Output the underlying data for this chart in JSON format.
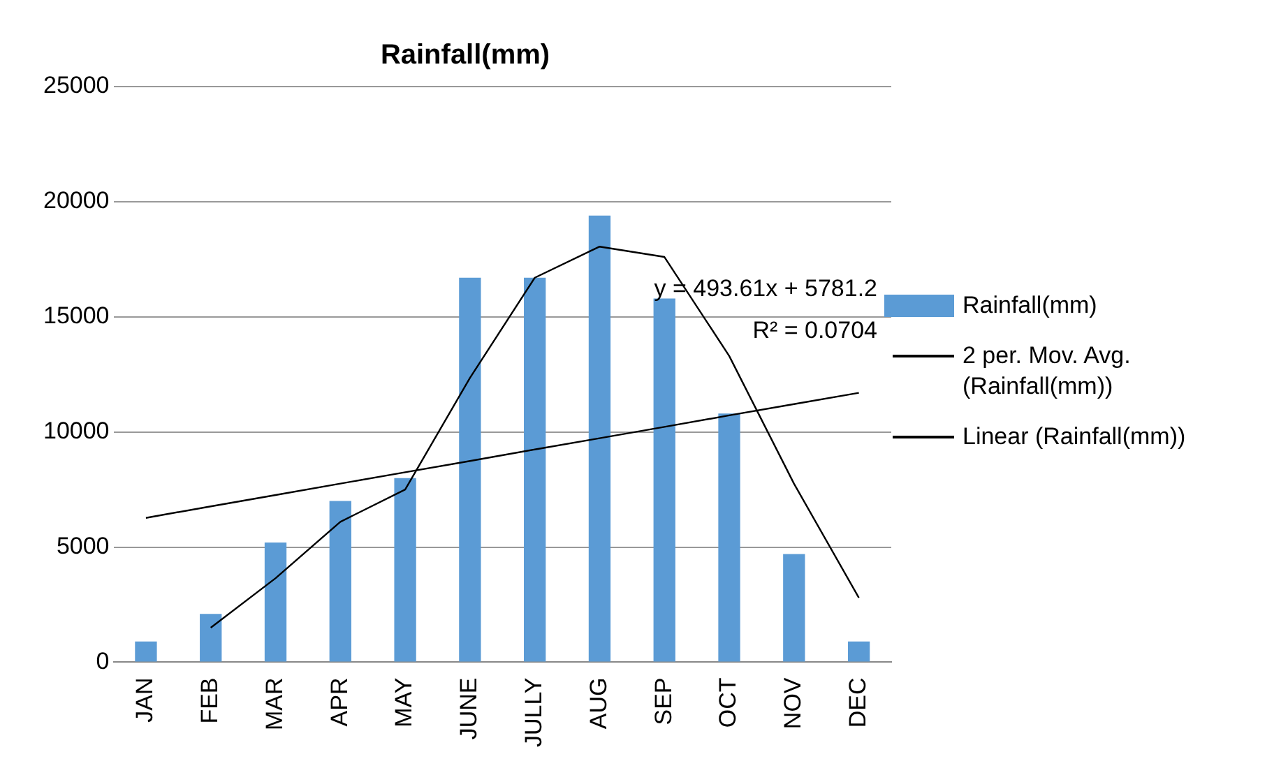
{
  "chart_data": {
    "type": "bar",
    "title": "Rainfall(mm)",
    "categories": [
      "JAN",
      "FEB",
      "MAR",
      "APR",
      "MAY",
      "JUNE",
      "JULLY",
      "AUG",
      "SEP",
      "OCT",
      "NOV",
      "DEC"
    ],
    "series": [
      {
        "name": "Rainfall(mm)",
        "type": "bar",
        "color": "#5b9bd5",
        "values": [
          900,
          2100,
          5200,
          7000,
          8000,
          16700,
          16700,
          19400,
          15800,
          10800,
          4700,
          900
        ]
      },
      {
        "name": "2 per. Mov. Avg. (Rainfall(mm))",
        "type": "line",
        "color": "#000000",
        "values": [
          null,
          1500,
          3650,
          6100,
          7500,
          12350,
          16700,
          18050,
          17600,
          13300,
          7750,
          2800
        ]
      },
      {
        "name": "Linear (Rainfall(mm))",
        "type": "line",
        "color": "#000000",
        "values": [
          6270,
          6770,
          7260,
          7760,
          8250,
          8740,
          9240,
          9730,
          10220,
          10720,
          11210,
          11700
        ]
      }
    ],
    "ylim": [
      0,
      25000
    ],
    "yticks": [
      0,
      5000,
      10000,
      15000,
      20000,
      25000
    ],
    "grid": "y",
    "legend": "right",
    "marker": "none",
    "line_style": "solid",
    "annotations": [
      "y = 493.61x + 5781.2",
      "R² = 0.0704"
    ]
  }
}
